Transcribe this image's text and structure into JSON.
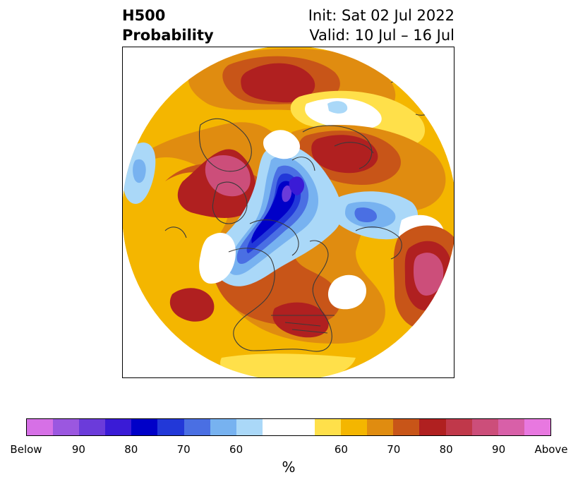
{
  "title": {
    "left_line1": "H500",
    "left_line2": "Probability",
    "right_line1": "Init: Sat 02 Jul 2022",
    "right_line2": "Valid: 10 Jul – 16 Jul"
  },
  "colorbar": {
    "colors": [
      "#d670e6",
      "#9b57e0",
      "#6b3bda",
      "#3a1bd6",
      "#0000c8",
      "#2238d8",
      "#4a6fe3",
      "#77b2f0",
      "#aad8f8",
      "#ffffff",
      "#ffffff",
      "#ffe04a",
      "#f4b600",
      "#e08c10",
      "#c85518",
      "#b02020",
      "#c0384a",
      "#cc4e7a",
      "#d860a8",
      "#e878e0"
    ],
    "tick_labels": [
      "Below",
      "90",
      "80",
      "70",
      "60",
      "60",
      "70",
      "80",
      "90",
      "Above"
    ],
    "unit_label": "%"
  },
  "map": {
    "projection": "north polar stereographic",
    "fill_colors": {
      "yellow": "#ffe04a",
      "gold": "#f4b600",
      "orange": "#e08c10",
      "dark_orange": "#c85518",
      "red": "#b02020",
      "crimson": "#c0384a",
      "pink": "#cc4e7a",
      "light_blue": "#aad8f8",
      "sky_blue": "#77b2f0",
      "blue": "#4a6fe3",
      "med_blue": "#2238d8",
      "deep_blue": "#0000c8",
      "indigo": "#3a1bd6",
      "violet": "#6b3bda",
      "coast": "#3a3a3a"
    }
  }
}
